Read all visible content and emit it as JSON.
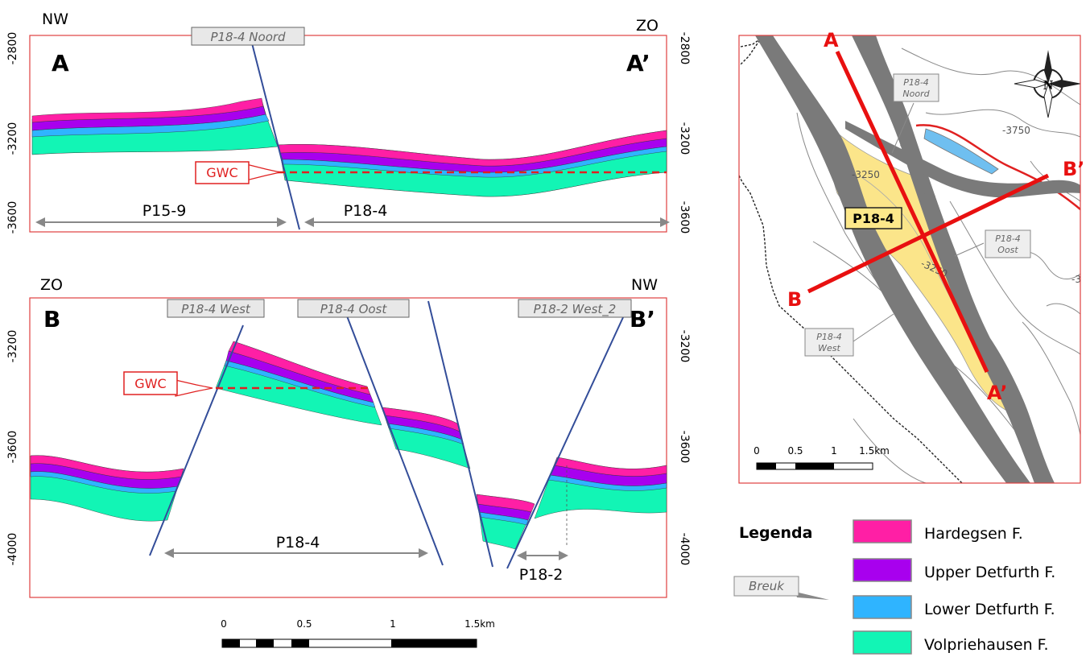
{
  "colors": {
    "hardegsen": "#ff1fa5",
    "upper_detfurth": "#a800ee",
    "lower_detfurth": "#2fb4ff",
    "volpriehausen": "#12f5b5",
    "fault": "#334d99",
    "frame": "#e04040",
    "gwc": "#e02020",
    "map_fault": "#777777",
    "map_reservoir": "#fbe58a"
  },
  "section_a": {
    "dir_left": "NW",
    "dir_right": "ZO",
    "label_left": "A",
    "label_right": "A’",
    "depth_left": [
      "-2800",
      "-3200",
      "-3600"
    ],
    "depth_right": [
      "-2800",
      "-3200",
      "-3600"
    ],
    "fault_label": "P18-4 Noord",
    "gwc_label": "GWC",
    "extent_left": "P15-9",
    "extent_right": "P18-4"
  },
  "section_b": {
    "dir_left": "ZO",
    "dir_right": "NW",
    "label_left": "B",
    "label_right": "B’",
    "depth_left": [
      "-3200",
      "-3600",
      "-4000"
    ],
    "depth_right": [
      "-3200",
      "-3600",
      "-4000"
    ],
    "fault_labels": [
      "P18-4 West",
      "P18-4 Oost",
      "P18-2 West_2"
    ],
    "gwc_label": "GWC",
    "extent_main": "P18-4",
    "extent_small": "P18-2"
  },
  "section_scale": {
    "ticks": [
      "0",
      "0.5",
      "1",
      "1.5km"
    ]
  },
  "map": {
    "label_a": "A",
    "label_a_prime": "A’",
    "label_b": "B",
    "label_b_prime": "B’",
    "field_label": "P18-4",
    "fault_noord": [
      "P18-4",
      "Noord"
    ],
    "fault_oost": [
      "P18-4",
      "Oost"
    ],
    "fault_west": [
      "P18-4",
      "West"
    ],
    "contours": [
      "-3750",
      "-3250",
      "-3250",
      "-3"
    ],
    "scale_ticks": [
      "0",
      "0.5",
      "1",
      "1.5km"
    ],
    "compass_letter": "N",
    "compass": "compass-icon"
  },
  "legend": {
    "title": "Legenda",
    "fault_label": "Breuk",
    "items": [
      "Hardegsen F.",
      "Upper Detfurth F.",
      "Lower Detfurth F.",
      "Volpriehausen F."
    ]
  }
}
